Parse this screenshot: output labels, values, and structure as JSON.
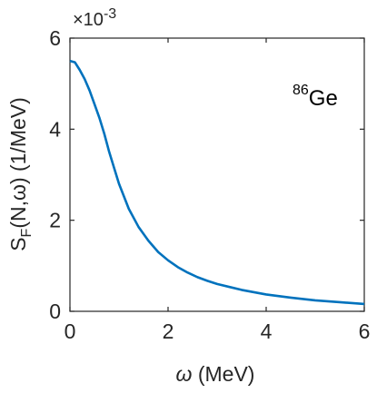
{
  "chart_data": {
    "type": "line",
    "title": "",
    "xlabel": "ω (MeV)",
    "xlabel_symbol": "ω",
    "xlabel_unit": " (MeV)",
    "ylabel": "S_F(N,ω) (1/MeV)",
    "ylabel_main": "S",
    "ylabel_sub": "F",
    "ylabel_rest": "(N,ω) (1/MeV)",
    "y_multiplier": "×10^-3",
    "y_multiplier_base": "×10",
    "y_multiplier_exp": "-3",
    "xlim": [
      0,
      6
    ],
    "ylim": [
      0,
      6
    ],
    "xticks": [
      0,
      2,
      4,
      6
    ],
    "yticks": [
      0,
      2,
      4,
      6
    ],
    "annotation": "86Ge",
    "annotation_sup": "86",
    "annotation_text": "Ge",
    "series": [
      {
        "color": "#0072BD",
        "x": [
          0,
          0.1,
          0.2,
          0.3,
          0.4,
          0.5,
          0.6,
          0.7,
          0.8,
          0.9,
          1.0,
          1.2,
          1.4,
          1.6,
          1.8,
          2.0,
          2.2,
          2.4,
          2.6,
          2.8,
          3.0,
          3.5,
          4.0,
          4.5,
          5.0,
          5.5,
          6.0
        ],
        "values": [
          5.5,
          5.47,
          5.3,
          5.1,
          4.85,
          4.55,
          4.25,
          3.9,
          3.5,
          3.15,
          2.8,
          2.25,
          1.85,
          1.55,
          1.3,
          1.12,
          0.97,
          0.85,
          0.75,
          0.67,
          0.6,
          0.47,
          0.37,
          0.3,
          0.24,
          0.2,
          0.16
        ]
      }
    ]
  }
}
